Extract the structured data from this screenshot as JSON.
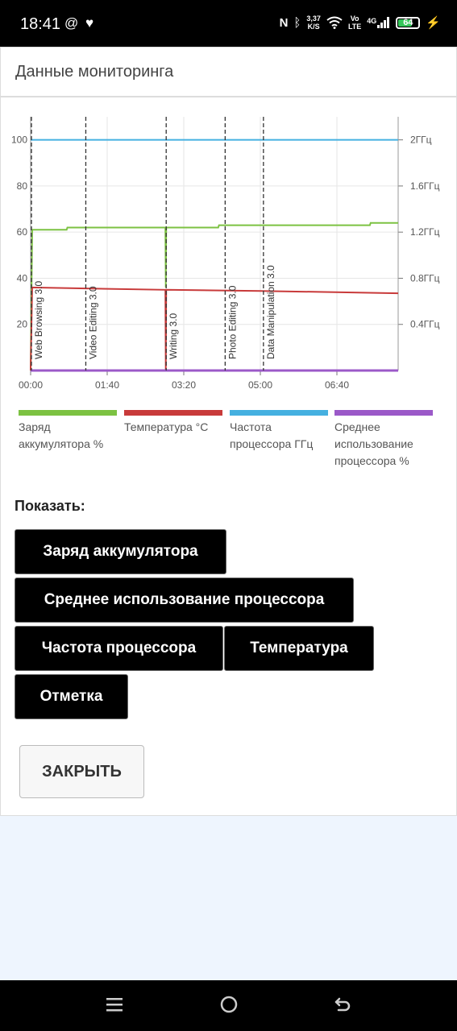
{
  "status_bar": {
    "time": "18:41",
    "left_icons": [
      "at-icon",
      "heart-check-icon"
    ],
    "net_speed_value": "3,37",
    "net_speed_unit": "K/S",
    "volte_top": "Vo",
    "volte_bottom": "LTE",
    "network": "4G",
    "battery_level": "64"
  },
  "panel": {
    "title": "Данные мониторинга"
  },
  "chart_data": {
    "type": "line",
    "x_ticks": [
      "00:00",
      "01:40",
      "03:20",
      "05:00",
      "06:40"
    ],
    "x_range_seconds": [
      0,
      480
    ],
    "y_left_ticks": [
      "100",
      "80",
      "60",
      "40",
      "20"
    ],
    "y_left_range": [
      0,
      110
    ],
    "y_right_ticks": [
      "2ГГц",
      "1.6ГГц",
      "1.2ГГц",
      "0.8ГГц",
      "0.4ГГц"
    ],
    "grid": true,
    "legend_position": "bottom",
    "markers": [
      {
        "label": "Web Browsing 3.0",
        "t": 0
      },
      {
        "label": "Video Editing 3.0",
        "t": 71
      },
      {
        "label": "Writing 3.0",
        "t": 176
      },
      {
        "label": "Photo Editing 3.0",
        "t": 253
      },
      {
        "label": "Data Manipulation 3.0",
        "t": 303
      }
    ],
    "series": [
      {
        "name": "Заряд аккумулятора %",
        "color": "#7cc242",
        "points": [
          [
            0,
            0
          ],
          [
            2,
            61
          ],
          [
            47,
            61
          ],
          [
            48,
            62
          ],
          [
            176,
            62
          ],
          [
            176.5,
            36
          ],
          [
            177,
            62
          ],
          [
            245,
            62
          ],
          [
            246,
            63
          ],
          [
            443,
            63
          ],
          [
            444,
            64
          ],
          [
            480,
            64
          ]
        ]
      },
      {
        "name": "Температура °C",
        "color": "#c83a3a",
        "points": [
          [
            0,
            0
          ],
          [
            2,
            36
          ],
          [
            80,
            35.5
          ],
          [
            176,
            35
          ],
          [
            176.5,
            0
          ],
          [
            177,
            35
          ],
          [
            300,
            34.5
          ],
          [
            480,
            33.5
          ]
        ]
      },
      {
        "name": "Частота процессора ГГц",
        "color": "#45b0e0",
        "points": [
          [
            0,
            100
          ],
          [
            480,
            100
          ]
        ]
      },
      {
        "name": "Среднее использование процессора %",
        "color": "#9b59c8",
        "points": [
          [
            0,
            0
          ],
          [
            480,
            0
          ]
        ]
      }
    ]
  },
  "show_section": {
    "label": "Показать:",
    "buttons": [
      "Заряд аккумулятора",
      "Среднее использование процессора",
      "Частота процессора",
      "Температура",
      "Отметка"
    ]
  },
  "close_label": "ЗАКРЫТЬ",
  "nav": [
    "menu-icon",
    "home-icon",
    "back-icon"
  ]
}
